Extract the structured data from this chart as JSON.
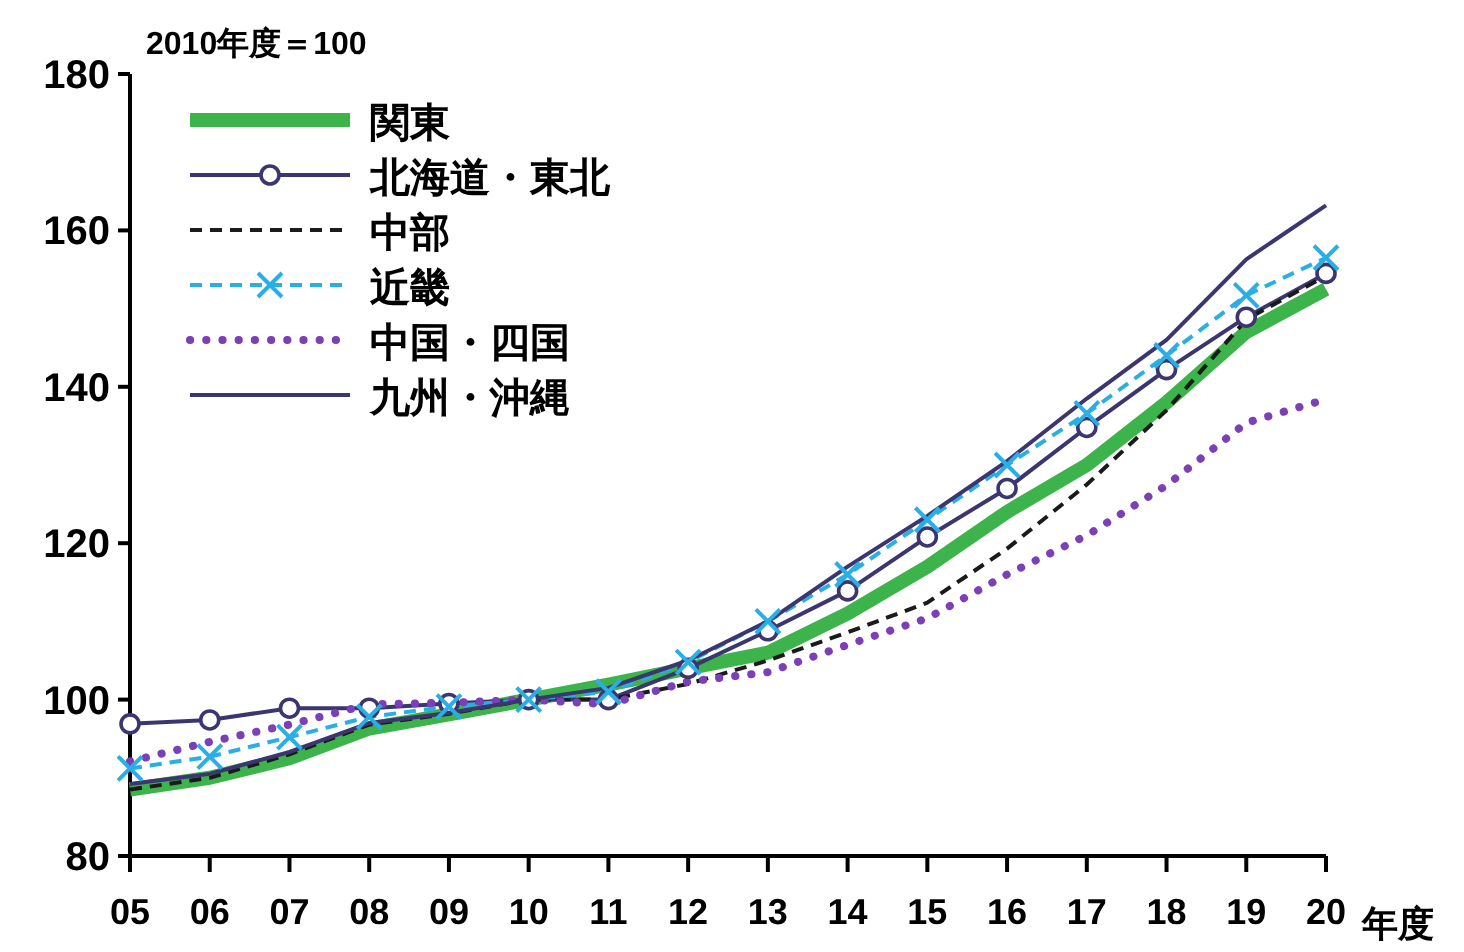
{
  "chart_data": {
    "type": "line",
    "ylabel": "2010年度＝100",
    "xlabel": "年度",
    "categories": [
      "05",
      "06",
      "07",
      "08",
      "09",
      "10",
      "11",
      "12",
      "13",
      "14",
      "15",
      "16",
      "17",
      "18",
      "19",
      "20"
    ],
    "ylim": [
      80,
      180
    ],
    "yticks": [
      80,
      100,
      120,
      140,
      160,
      180
    ],
    "grid": false,
    "legend": "top left",
    "series": [
      {
        "name": "関東",
        "color": "#3cb44b",
        "line_style": "solid",
        "marker": "none",
        "values": [
          88.5,
          90,
          92.5,
          96.3,
          98.1,
          100,
          101.9,
          104,
          106,
          111,
          117,
          124,
          130,
          138,
          147,
          152.5
        ]
      },
      {
        "name": "北海道・東北",
        "color": "#3b3670",
        "line_style": "solid",
        "marker": "circle",
        "values": [
          96.9,
          97.4,
          98.9,
          98.9,
          99.5,
          100,
          100,
          104,
          108.8,
          113.9,
          120.8,
          127,
          134.8,
          142.2,
          148.9,
          154.5
        ]
      },
      {
        "name": "中部",
        "color": "#1a1a1a",
        "line_style": "dashed",
        "marker": "none",
        "values": [
          88.5,
          90,
          93,
          96.8,
          98.2,
          100,
          100,
          102,
          105,
          108.6,
          112.4,
          119.3,
          127.5,
          137,
          148.6,
          154.2
        ]
      },
      {
        "name": "近畿",
        "color": "#29aee6",
        "line_style": "dashed",
        "marker": "cross",
        "values": [
          91.2,
          92.7,
          95.2,
          97.8,
          99.1,
          100,
          101,
          104.8,
          110,
          116,
          123,
          130,
          136.6,
          144,
          151.7,
          156.5
        ]
      },
      {
        "name": "中国・四国",
        "color": "#7b3fb8",
        "line_style": "dotted",
        "marker": "none",
        "values": [
          92.1,
          94.6,
          96.8,
          99.4,
          99.6,
          100,
          99.4,
          102.3,
          103.5,
          107,
          110.4,
          116,
          121,
          127.4,
          135.4,
          138.4
        ]
      },
      {
        "name": "九州・沖縄",
        "color": "#3b3670",
        "line_style": "solid",
        "marker": "none",
        "values": [
          89.2,
          90.5,
          93.3,
          97,
          98.3,
          100,
          101.5,
          105,
          110,
          117,
          123.5,
          130.5,
          138.5,
          146,
          156.3,
          163.2
        ]
      }
    ]
  }
}
